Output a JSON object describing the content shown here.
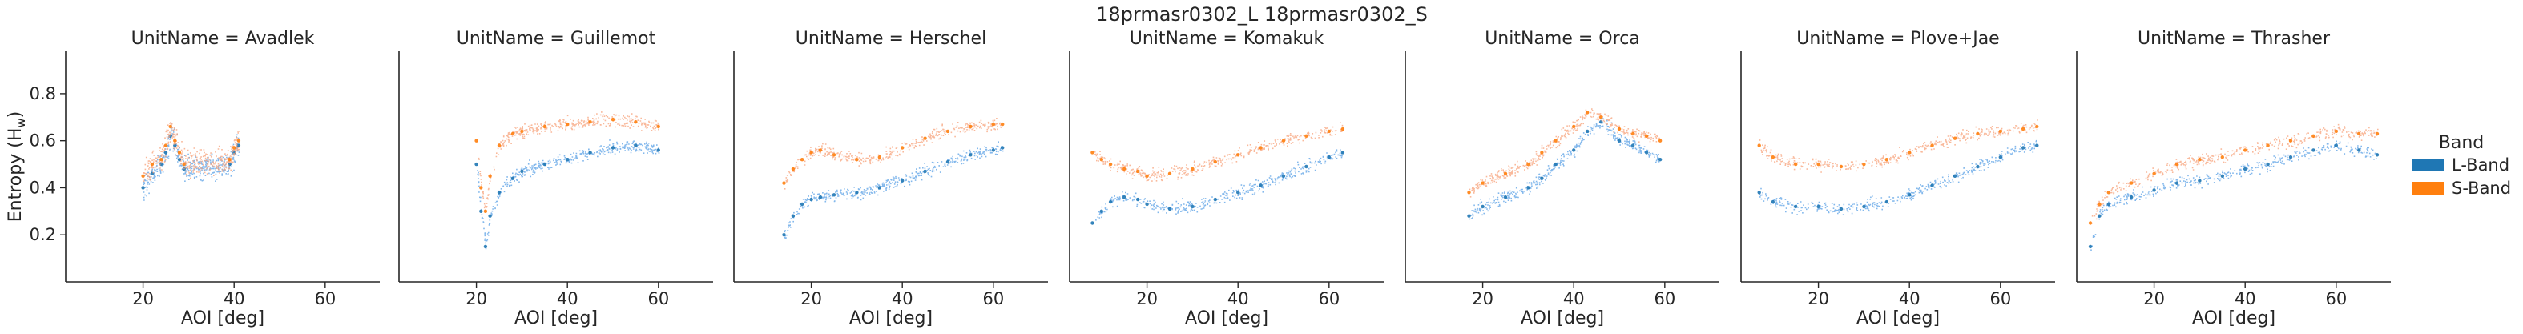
{
  "figure": {
    "suptitle": "18prmasr0302_L 18prmasr0302_S"
  },
  "colors": {
    "l_band": "#1f77b4",
    "s_band": "#ff7f0e",
    "l_band_points": "#5aa0e6",
    "s_band_points": "#f7a27a"
  },
  "chart_data": {
    "type": "scatter",
    "title": "18prmasr0302_L 18prmasr0302_S",
    "xlabel": "AOI [deg]",
    "ylabel": "Entropy (Hw)",
    "xlim": [
      3,
      72
    ],
    "ylim": [
      0.0,
      0.98
    ],
    "xticks": [
      20,
      40,
      60
    ],
    "yticks": [
      0.2,
      0.4,
      0.6,
      0.8
    ],
    "grid": false,
    "legend": {
      "title": "Band",
      "placement": "right",
      "entries": [
        "L-Band",
        "S-Band"
      ]
    },
    "facet_label": "UnitName",
    "panels": [
      {
        "title": "UnitName = Avadlek",
        "series": [
          {
            "name": "L-Band",
            "x": [
              20,
              22,
              24,
              25,
              26,
              27,
              28,
              29,
              39,
              40,
              41
            ],
            "y": [
              0.4,
              0.46,
              0.5,
              0.55,
              0.62,
              0.58,
              0.52,
              0.48,
              0.5,
              0.55,
              0.58
            ]
          },
          {
            "name": "S-Band",
            "x": [
              20,
              22,
              24,
              25,
              26,
              27,
              28,
              29,
              39,
              40,
              41
            ],
            "y": [
              0.45,
              0.5,
              0.52,
              0.58,
              0.66,
              0.6,
              0.55,
              0.5,
              0.52,
              0.57,
              0.6
            ]
          }
        ]
      },
      {
        "title": "UnitName = Guillemot",
        "series": [
          {
            "name": "L-Band",
            "x": [
              20,
              21,
              22,
              23,
              25,
              28,
              30,
              35,
              40,
              45,
              50,
              55,
              60
            ],
            "y": [
              0.5,
              0.3,
              0.15,
              0.28,
              0.38,
              0.44,
              0.47,
              0.5,
              0.52,
              0.55,
              0.57,
              0.58,
              0.56
            ]
          },
          {
            "name": "S-Band",
            "x": [
              20,
              21,
              22,
              23,
              25,
              28,
              30,
              35,
              40,
              45,
              50,
              55,
              60
            ],
            "y": [
              0.6,
              0.4,
              0.3,
              0.45,
              0.58,
              0.63,
              0.64,
              0.66,
              0.67,
              0.68,
              0.69,
              0.68,
              0.66
            ]
          }
        ]
      },
      {
        "title": "UnitName = Herschel",
        "series": [
          {
            "name": "L-Band",
            "x": [
              14,
              16,
              18,
              20,
              22,
              25,
              30,
              35,
              40,
              45,
              50,
              55,
              60,
              62
            ],
            "y": [
              0.2,
              0.28,
              0.33,
              0.35,
              0.36,
              0.37,
              0.38,
              0.4,
              0.43,
              0.47,
              0.51,
              0.54,
              0.56,
              0.57
            ]
          },
          {
            "name": "S-Band",
            "x": [
              14,
              16,
              18,
              20,
              22,
              25,
              30,
              35,
              40,
              45,
              50,
              55,
              60,
              62
            ],
            "y": [
              0.42,
              0.48,
              0.52,
              0.55,
              0.56,
              0.54,
              0.52,
              0.53,
              0.57,
              0.61,
              0.64,
              0.66,
              0.67,
              0.67
            ]
          }
        ]
      },
      {
        "title": "UnitName = Komakuk",
        "series": [
          {
            "name": "L-Band",
            "x": [
              8,
              10,
              12,
              15,
              18,
              20,
              25,
              30,
              35,
              40,
              45,
              50,
              55,
              60,
              63
            ],
            "y": [
              0.25,
              0.3,
              0.34,
              0.36,
              0.35,
              0.33,
              0.31,
              0.32,
              0.35,
              0.38,
              0.41,
              0.45,
              0.49,
              0.53,
              0.55
            ]
          },
          {
            "name": "S-Band",
            "x": [
              8,
              10,
              12,
              15,
              18,
              20,
              25,
              30,
              35,
              40,
              45,
              50,
              55,
              60,
              63
            ],
            "y": [
              0.55,
              0.52,
              0.5,
              0.48,
              0.47,
              0.45,
              0.46,
              0.48,
              0.51,
              0.54,
              0.57,
              0.6,
              0.62,
              0.64,
              0.65
            ]
          }
        ]
      },
      {
        "title": "UnitName = Orca",
        "series": [
          {
            "name": "L-Band",
            "x": [
              17,
              20,
              25,
              30,
              33,
              36,
              40,
              43,
              46,
              50,
              53,
              56,
              59
            ],
            "y": [
              0.28,
              0.32,
              0.36,
              0.4,
              0.44,
              0.5,
              0.56,
              0.64,
              0.68,
              0.6,
              0.58,
              0.55,
              0.52
            ]
          },
          {
            "name": "S-Band",
            "x": [
              17,
              20,
              25,
              30,
              33,
              36,
              40,
              43,
              46,
              50,
              53,
              56,
              59
            ],
            "y": [
              0.38,
              0.42,
              0.46,
              0.5,
              0.55,
              0.6,
              0.66,
              0.72,
              0.7,
              0.65,
              0.63,
              0.62,
              0.6
            ]
          }
        ]
      },
      {
        "title": "UnitName = Plove+Jae",
        "series": [
          {
            "name": "L-Band",
            "x": [
              7,
              10,
              15,
              20,
              25,
              30,
              35,
              40,
              45,
              50,
              55,
              60,
              65,
              68
            ],
            "y": [
              0.38,
              0.34,
              0.32,
              0.32,
              0.31,
              0.32,
              0.34,
              0.37,
              0.41,
              0.45,
              0.49,
              0.53,
              0.57,
              0.58
            ]
          },
          {
            "name": "S-Band",
            "x": [
              7,
              10,
              15,
              20,
              25,
              30,
              35,
              40,
              45,
              50,
              55,
              60,
              65,
              68
            ],
            "y": [
              0.58,
              0.53,
              0.5,
              0.5,
              0.49,
              0.5,
              0.52,
              0.55,
              0.58,
              0.61,
              0.63,
              0.64,
              0.65,
              0.66
            ]
          }
        ]
      },
      {
        "title": "UnitName = Thrasher",
        "series": [
          {
            "name": "L-Band",
            "x": [
              6,
              8,
              10,
              15,
              20,
              25,
              30,
              35,
              40,
              45,
              50,
              55,
              60,
              65,
              69
            ],
            "y": [
              0.15,
              0.28,
              0.33,
              0.36,
              0.39,
              0.42,
              0.43,
              0.45,
              0.48,
              0.5,
              0.53,
              0.56,
              0.58,
              0.56,
              0.54
            ]
          },
          {
            "name": "S-Band",
            "x": [
              6,
              8,
              10,
              15,
              20,
              25,
              30,
              35,
              40,
              45,
              50,
              55,
              60,
              65,
              69
            ],
            "y": [
              0.25,
              0.33,
              0.38,
              0.42,
              0.46,
              0.5,
              0.52,
              0.53,
              0.56,
              0.58,
              0.6,
              0.62,
              0.64,
              0.63,
              0.63
            ]
          }
        ]
      }
    ]
  }
}
